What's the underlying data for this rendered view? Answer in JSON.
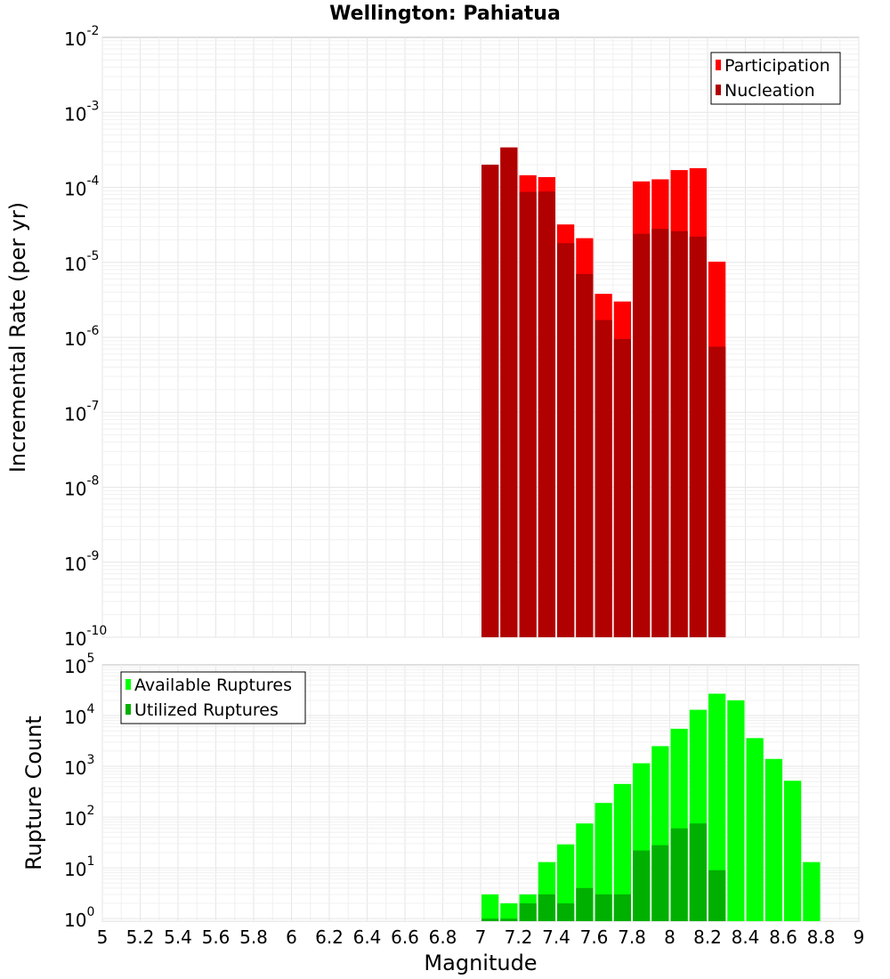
{
  "chart_data": {
    "type": "bar",
    "title": "Wellington: Pahiatua",
    "xlabel": "Magnitude",
    "xlim": [
      5,
      9
    ],
    "x_ticks": [
      "5",
      "5.2",
      "5.4",
      "5.6",
      "5.8",
      "6",
      "6.2",
      "6.4",
      "6.6",
      "6.8",
      "7",
      "7.2",
      "7.4",
      "7.6",
      "7.8",
      "8",
      "8.2",
      "8.4",
      "8.6",
      "8.8",
      "9"
    ],
    "bin_width": 0.1,
    "panels": [
      {
        "name": "rate",
        "ylabel": "Incremental Rate (per yr)",
        "yscale": "log",
        "ylim_exp": [
          -10,
          -2
        ],
        "y_ticks": [
          {
            "exp": -10,
            "base": "10",
            "sup": "-10"
          },
          {
            "exp": -9,
            "base": "10",
            "sup": "-9"
          },
          {
            "exp": -8,
            "base": "10",
            "sup": "-8"
          },
          {
            "exp": -7,
            "base": "10",
            "sup": "-7"
          },
          {
            "exp": -6,
            "base": "10",
            "sup": "-6"
          },
          {
            "exp": -5,
            "base": "10",
            "sup": "-5"
          },
          {
            "exp": -4,
            "base": "10",
            "sup": "-4"
          },
          {
            "exp": -3,
            "base": "10",
            "sup": "-3"
          },
          {
            "exp": -2,
            "base": "10",
            "sup": "-2"
          }
        ],
        "legend": [
          {
            "label": "Participation",
            "color": "#ff0000"
          },
          {
            "label": "Nucleation",
            "color": "#b00000"
          }
        ],
        "series": [
          {
            "name": "Participation",
            "color": "#ff0000",
            "x": [
              7.05,
              7.15,
              7.25,
              7.35,
              7.45,
              7.55,
              7.65,
              7.75,
              7.85,
              7.95,
              8.05,
              8.15,
              8.25
            ],
            "values": [
              0.0002,
              0.00034,
              0.000145,
              0.000137,
              3.2e-05,
              2.1e-05,
              3.8e-06,
              3e-06,
              0.00012,
              0.000128,
              0.00017,
              0.00018,
              1.02e-05
            ]
          },
          {
            "name": "Nucleation",
            "color": "#b00000",
            "x": [
              7.05,
              7.15,
              7.25,
              7.35,
              7.45,
              7.55,
              7.65,
              7.75,
              7.85,
              7.95,
              8.05,
              8.15,
              8.25
            ],
            "values": [
              0.0002,
              0.00034,
              8.7e-05,
              8.8e-05,
              1.8e-05,
              7e-06,
              1.7e-06,
              9.5e-07,
              2.4e-05,
              2.8e-05,
              2.6e-05,
              2.2e-05,
              7.5e-07
            ]
          }
        ]
      },
      {
        "name": "count",
        "ylabel": "Rupture Count",
        "yscale": "log",
        "ylim_exp": [
          -0.05,
          5
        ],
        "y_ticks": [
          {
            "exp": 0,
            "base": "10",
            "sup": "0"
          },
          {
            "exp": 1,
            "base": "10",
            "sup": "1"
          },
          {
            "exp": 2,
            "base": "10",
            "sup": "2"
          },
          {
            "exp": 3,
            "base": "10",
            "sup": "3"
          },
          {
            "exp": 4,
            "base": "10",
            "sup": "4"
          },
          {
            "exp": 5,
            "base": "10",
            "sup": "5"
          }
        ],
        "legend": [
          {
            "label": "Available Ruptures",
            "color": "#00ff00"
          },
          {
            "label": "Utilized Ruptures",
            "color": "#00b000"
          }
        ],
        "series": [
          {
            "name": "Available Ruptures",
            "color": "#00ff00",
            "x": [
              7.05,
              7.15,
              7.25,
              7.35,
              7.45,
              7.55,
              7.65,
              7.75,
              7.85,
              7.95,
              8.05,
              8.15,
              8.25,
              8.35,
              8.45,
              8.55,
              8.65,
              8.75
            ],
            "values": [
              3,
              2,
              3,
              13,
              29,
              75,
              190,
              450,
              1150,
              2500,
              5500,
              13000,
              27000,
              20000,
              3600,
              1400,
              520,
              13
            ]
          },
          {
            "name": "Utilized Ruptures",
            "color": "#00b000",
            "x": [
              7.05,
              7.15,
              7.25,
              7.35,
              7.45,
              7.55,
              7.65,
              7.75,
              7.85,
              7.95,
              8.05,
              8.15,
              8.25
            ],
            "values": [
              1,
              1,
              2,
              3,
              2,
              4,
              3,
              3,
              22,
              28,
              60,
              75,
              9
            ]
          }
        ]
      }
    ]
  }
}
